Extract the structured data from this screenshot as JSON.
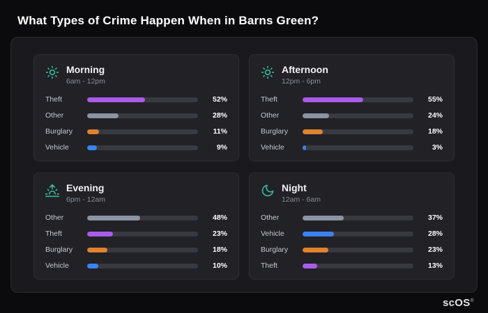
{
  "page": {
    "title": "What Types of Crime Happen When in Barns Green?",
    "brand": "scOS",
    "brand_mark": "®"
  },
  "colors": {
    "accent_icon": "#35b89a",
    "theft": "#a85ce8",
    "other": "#8b94a3",
    "burglary": "#e0822f",
    "vehicle": "#3b82f6",
    "track": "#383941",
    "background": "#0b0b0d",
    "panel": "#1a1a1e",
    "card": "#212126"
  },
  "cards": [
    {
      "title": "Morning",
      "time": "6am - 12pm",
      "icon": "sun-icon",
      "rows": [
        {
          "label": "Theft",
          "value": 52,
          "pct": "52%",
          "color": "#a85ce8"
        },
        {
          "label": "Other",
          "value": 28,
          "pct": "28%",
          "color": "#8b94a3"
        },
        {
          "label": "Burglary",
          "value": 11,
          "pct": "11%",
          "color": "#e0822f"
        },
        {
          "label": "Vehicle",
          "value": 9,
          "pct": "9%",
          "color": "#3b82f6"
        }
      ]
    },
    {
      "title": "Afternoon",
      "time": "12pm - 6pm",
      "icon": "sun-icon",
      "rows": [
        {
          "label": "Theft",
          "value": 55,
          "pct": "55%",
          "color": "#a85ce8"
        },
        {
          "label": "Other",
          "value": 24,
          "pct": "24%",
          "color": "#8b94a3"
        },
        {
          "label": "Burglary",
          "value": 18,
          "pct": "18%",
          "color": "#e0822f"
        },
        {
          "label": "Vehicle",
          "value": 3,
          "pct": "3%",
          "color": "#3b82f6"
        }
      ]
    },
    {
      "title": "Evening",
      "time": "6pm - 12am",
      "icon": "sunset-icon",
      "rows": [
        {
          "label": "Other",
          "value": 48,
          "pct": "48%",
          "color": "#8b94a3"
        },
        {
          "label": "Theft",
          "value": 23,
          "pct": "23%",
          "color": "#a85ce8"
        },
        {
          "label": "Burglary",
          "value": 18,
          "pct": "18%",
          "color": "#e0822f"
        },
        {
          "label": "Vehicle",
          "value": 10,
          "pct": "10%",
          "color": "#3b82f6"
        }
      ]
    },
    {
      "title": "Night",
      "time": "12am - 6am",
      "icon": "moon-icon",
      "rows": [
        {
          "label": "Other",
          "value": 37,
          "pct": "37%",
          "color": "#8b94a3"
        },
        {
          "label": "Vehicle",
          "value": 28,
          "pct": "28%",
          "color": "#3b82f6"
        },
        {
          "label": "Burglary",
          "value": 23,
          "pct": "23%",
          "color": "#e0822f"
        },
        {
          "label": "Theft",
          "value": 13,
          "pct": "13%",
          "color": "#a85ce8"
        }
      ]
    }
  ],
  "chart_data": [
    {
      "type": "bar",
      "orientation": "horizontal",
      "title": "Morning",
      "subtitle": "6am - 12pm",
      "categories": [
        "Theft",
        "Other",
        "Burglary",
        "Vehicle"
      ],
      "values": [
        52,
        28,
        11,
        9
      ],
      "unit": "%",
      "xlim": [
        0,
        100
      ],
      "bar_colors": [
        "#a85ce8",
        "#8b94a3",
        "#e0822f",
        "#3b82f6"
      ],
      "grid": false,
      "legend": false
    },
    {
      "type": "bar",
      "orientation": "horizontal",
      "title": "Afternoon",
      "subtitle": "12pm - 6pm",
      "categories": [
        "Theft",
        "Other",
        "Burglary",
        "Vehicle"
      ],
      "values": [
        55,
        24,
        18,
        3
      ],
      "unit": "%",
      "xlim": [
        0,
        100
      ],
      "bar_colors": [
        "#a85ce8",
        "#8b94a3",
        "#e0822f",
        "#3b82f6"
      ],
      "grid": false,
      "legend": false
    },
    {
      "type": "bar",
      "orientation": "horizontal",
      "title": "Evening",
      "subtitle": "6pm - 12am",
      "categories": [
        "Other",
        "Theft",
        "Burglary",
        "Vehicle"
      ],
      "values": [
        48,
        23,
        18,
        10
      ],
      "unit": "%",
      "xlim": [
        0,
        100
      ],
      "bar_colors": [
        "#8b94a3",
        "#a85ce8",
        "#e0822f",
        "#3b82f6"
      ],
      "grid": false,
      "legend": false
    },
    {
      "type": "bar",
      "orientation": "horizontal",
      "title": "Night",
      "subtitle": "12am - 6am",
      "categories": [
        "Other",
        "Vehicle",
        "Burglary",
        "Theft"
      ],
      "values": [
        37,
        28,
        23,
        13
      ],
      "unit": "%",
      "xlim": [
        0,
        100
      ],
      "bar_colors": [
        "#8b94a3",
        "#3b82f6",
        "#e0822f",
        "#a85ce8"
      ],
      "grid": false,
      "legend": false
    }
  ]
}
